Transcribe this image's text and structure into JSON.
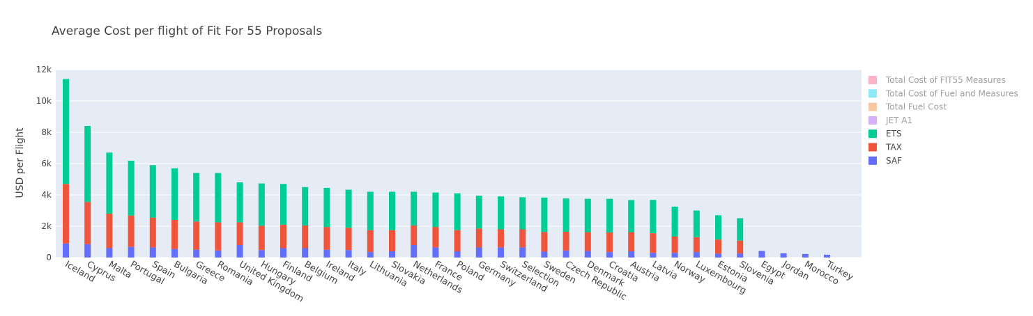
{
  "chart_data": {
    "type": "bar",
    "barmode": "stack",
    "title": "Average Cost per flight of Fit For 55 Proposals",
    "xlabel": "",
    "ylabel": "USD per Flight",
    "ylim": [
      0,
      12000
    ],
    "yticks": [
      0,
      2000,
      4000,
      6000,
      8000,
      10000,
      12000
    ],
    "ytick_labels": [
      "0",
      "2k",
      "4k",
      "6k",
      "8k",
      "10k",
      "12k"
    ],
    "grid": true,
    "legend_position": "right",
    "categories": [
      "Iceland",
      "Cyprus",
      "Malta",
      "Portugal",
      "Spain",
      "Bulgaria",
      "Greece",
      "Romania",
      "United Kingdom",
      "Hungary",
      "Finland",
      "Belgium",
      "Ireland",
      "Italy",
      "Lithuania",
      "Slovakia",
      "Netherlands",
      "France",
      "Poland",
      "Germany",
      "Switzerland",
      "Selection",
      "Sweden",
      "Czech Republic",
      "Denmark",
      "Croatia",
      "Austria",
      "Latvia",
      "Norway",
      "Luxembourg",
      "Estonia",
      "Slovenia",
      "Egypt",
      "Jordan",
      "Morocco",
      "Turkey"
    ],
    "series": [
      {
        "name": "SAF",
        "color": "#636efa",
        "values": [
          900,
          850,
          600,
          680,
          650,
          550,
          500,
          450,
          800,
          480,
          600,
          600,
          500,
          480,
          350,
          400,
          800,
          650,
          400,
          650,
          650,
          650,
          380,
          450,
          420,
          350,
          400,
          300,
          300,
          350,
          250,
          260,
          420,
          270,
          230,
          180
        ]
      },
      {
        "name": "TAX",
        "color": "#ef553b",
        "values": [
          3800,
          2700,
          2200,
          2000,
          1900,
          1850,
          1800,
          1800,
          1450,
          1550,
          1500,
          1450,
          1450,
          1420,
          1400,
          1350,
          1250,
          1300,
          1350,
          1200,
          1150,
          1150,
          1250,
          1200,
          1200,
          1250,
          1220,
          1250,
          1050,
          950,
          900,
          820,
          0,
          0,
          0,
          0
        ]
      },
      {
        "name": "ETS",
        "color": "#00cc96",
        "values": [
          6700,
          4850,
          3900,
          3500,
          3350,
          3300,
          3100,
          3150,
          2550,
          2700,
          2600,
          2450,
          2500,
          2430,
          2450,
          2450,
          2150,
          2200,
          2350,
          2100,
          2100,
          2050,
          2200,
          2120,
          2130,
          2150,
          2050,
          2130,
          1900,
          1700,
          1550,
          1430,
          0,
          0,
          0,
          0
        ]
      }
    ],
    "legend": [
      {
        "name": "Total Cost of FIT55 Measures",
        "color": "#ffb3c6",
        "visible": false
      },
      {
        "name": "Total Cost of Fuel and Measures",
        "color": "#8ee8f8",
        "visible": false
      },
      {
        "name": "Total Fuel Cost",
        "color": "#f8c8a0",
        "visible": false
      },
      {
        "name": "JET A1",
        "color": "#d6b0f8",
        "visible": false
      },
      {
        "name": "ETS",
        "color": "#00cc96",
        "visible": true
      },
      {
        "name": "TAX",
        "color": "#ef553b",
        "visible": true
      },
      {
        "name": "SAF",
        "color": "#636efa",
        "visible": true
      }
    ]
  }
}
